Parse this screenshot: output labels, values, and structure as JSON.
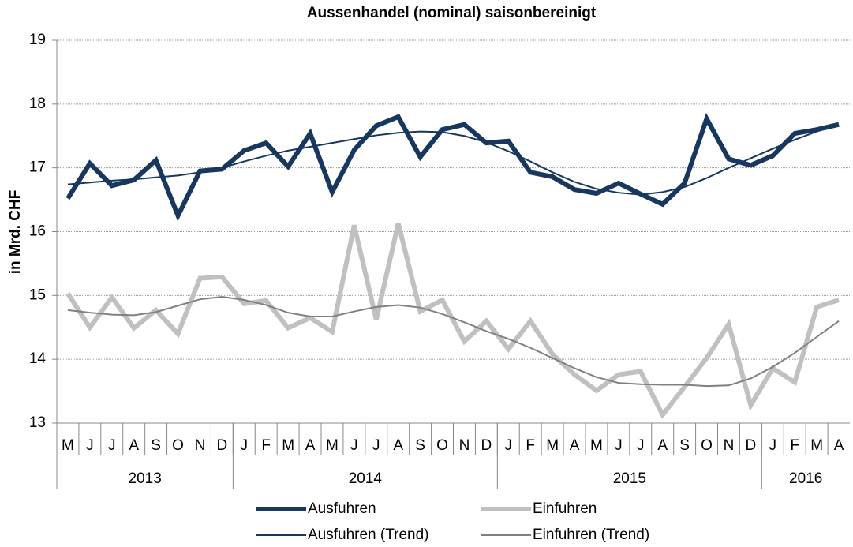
{
  "chart_data": {
    "type": "line",
    "title": "Aussenhandel (nominal) saisonbereinigt",
    "y_label": "in Mrd. CHF",
    "categories": [
      "M",
      "J",
      "J",
      "A",
      "S",
      "O",
      "N",
      "D",
      "J",
      "F",
      "M",
      "A",
      "M",
      "J",
      "J",
      "A",
      "S",
      "O",
      "N",
      "D",
      "J",
      "F",
      "M",
      "A",
      "M",
      "J",
      "J",
      "A",
      "S",
      "O",
      "N",
      "D",
      "J",
      "F",
      "M",
      "A"
    ],
    "category_groups": [
      {
        "label": "2013",
        "count": 8
      },
      {
        "label": "2014",
        "count": 12
      },
      {
        "label": "2015",
        "count": 12
      },
      {
        "label": "2016",
        "count": 4
      }
    ],
    "ylim": [
      13,
      19
    ],
    "yticks": [
      13,
      14,
      15,
      16,
      17,
      18,
      19
    ],
    "grid": true,
    "series": [
      {
        "name": "Ausfuhren",
        "color": "#17375e",
        "width": 6,
        "values": [
          16.52,
          17.07,
          16.72,
          16.81,
          17.12,
          16.25,
          16.95,
          16.98,
          17.27,
          17.39,
          17.02,
          17.54,
          16.62,
          17.28,
          17.66,
          17.8,
          17.17,
          17.6,
          17.68,
          17.39,
          17.42,
          16.93,
          16.86,
          16.66,
          16.6,
          16.76,
          16.59,
          16.43,
          16.76,
          17.77,
          17.14,
          17.04,
          17.19,
          17.54,
          17.6,
          17.68
        ]
      },
      {
        "name": "Einfuhren",
        "color": "#c0c0c0",
        "width": 6,
        "values": [
          15.03,
          14.5,
          14.97,
          14.49,
          14.77,
          14.4,
          15.27,
          15.29,
          14.87,
          14.92,
          14.49,
          14.65,
          14.43,
          16.1,
          14.62,
          16.13,
          14.75,
          14.93,
          14.28,
          14.6,
          14.16,
          14.6,
          14.08,
          13.76,
          13.51,
          13.76,
          13.81,
          13.13,
          13.57,
          14.02,
          14.55,
          13.28,
          13.86,
          13.64,
          14.82,
          14.93
        ]
      },
      {
        "name": "Ausfuhren (Trend)",
        "color": "#17375e",
        "width": 2,
        "values": [
          16.74,
          16.77,
          16.8,
          16.82,
          16.85,
          16.88,
          16.93,
          17.0,
          17.1,
          17.19,
          17.27,
          17.33,
          17.39,
          17.45,
          17.51,
          17.55,
          17.57,
          17.56,
          17.5,
          17.4,
          17.26,
          17.1,
          16.93,
          16.78,
          16.67,
          16.61,
          16.58,
          16.62,
          16.7,
          16.84,
          17.0,
          17.15,
          17.3,
          17.44,
          17.57,
          17.68
        ]
      },
      {
        "name": "Einfuhren (Trend)",
        "color": "#808080",
        "width": 2,
        "values": [
          14.77,
          14.73,
          14.7,
          14.69,
          14.74,
          14.84,
          14.94,
          14.98,
          14.93,
          14.85,
          14.73,
          14.67,
          14.67,
          14.75,
          14.82,
          14.85,
          14.81,
          14.71,
          14.58,
          14.44,
          14.32,
          14.18,
          14.02,
          13.86,
          13.72,
          13.63,
          13.61,
          13.6,
          13.6,
          13.58,
          13.59,
          13.7,
          13.88,
          14.1,
          14.35,
          14.6
        ]
      }
    ]
  }
}
